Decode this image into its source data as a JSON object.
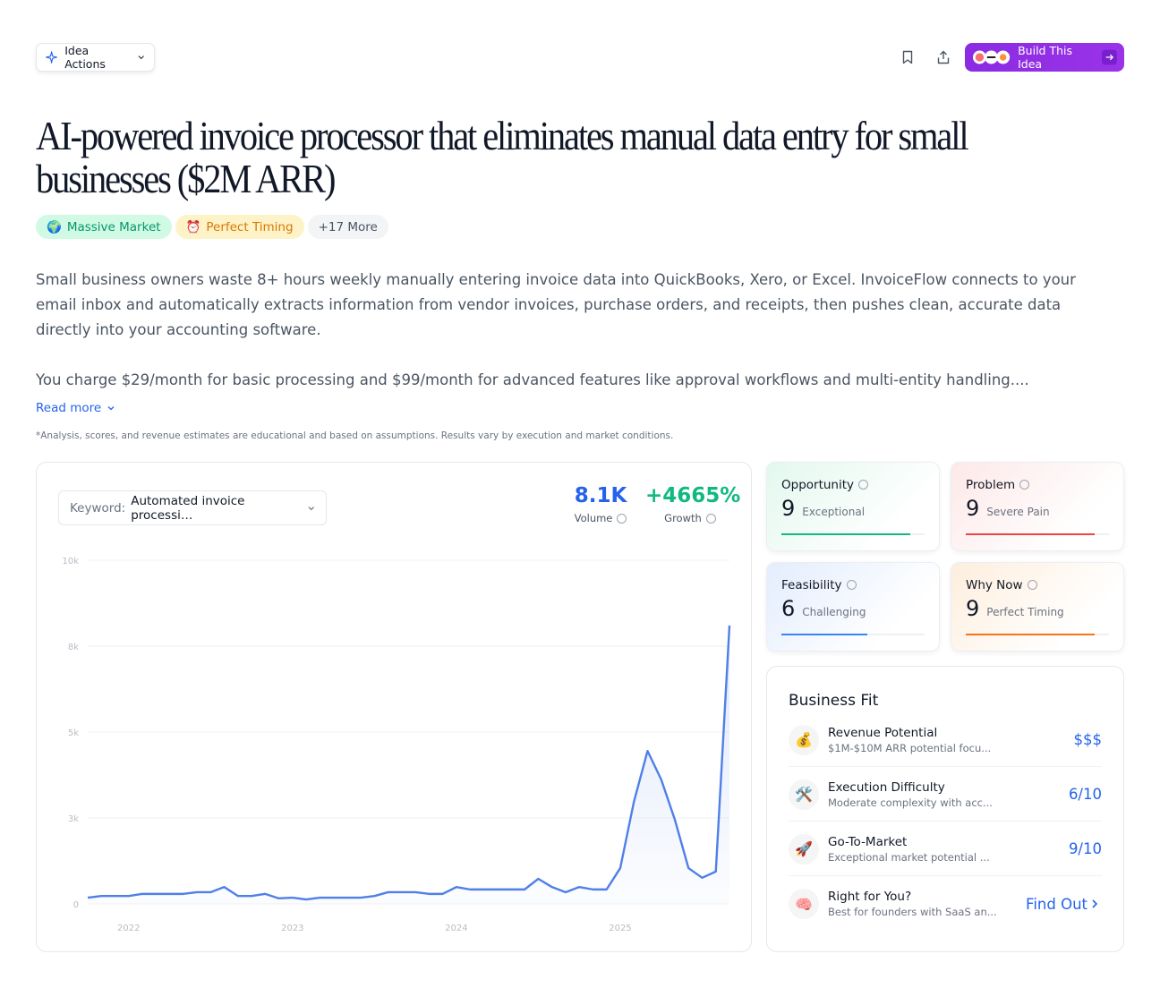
{
  "header": {
    "actions_menu": "Idea Actions",
    "build_button": "Build This Idea"
  },
  "title": "AI-powered invoice processor that eliminates manual data entry for small businesses ($2M ARR)",
  "tags": [
    {
      "icon": "🌍",
      "label": "Massive Market"
    },
    {
      "icon": "⏰",
      "label": "Perfect Timing"
    },
    {
      "label": "+17 More"
    }
  ],
  "description": [
    "Small business owners waste 8+ hours weekly manually entering invoice data into QuickBooks, Xero, or Excel. InvoiceFlow connects to your email inbox and automatically extracts information from vendor invoices, purchase orders, and receipts, then pushes clean, accurate data directly into your accounting software.",
    "You charge $29/month for basic processing and $99/month for advanced features like approval workflows and multi-entity handling...."
  ],
  "read_more": "Read more",
  "disclaimer": "*Analysis, scores, and revenue estimates are educational and based on assumptions. Results vary by execution and market conditions.",
  "trend": {
    "keyword_label": "Keyword:",
    "keyword": "Automated invoice processi…",
    "volume": "8.1K",
    "volume_label": "Volume",
    "growth": "+4665%",
    "growth_label": "Growth"
  },
  "chart_data": {
    "type": "line",
    "categories": [
      null,
      null,
      null,
      "2022",
      null,
      null,
      null,
      null,
      null,
      null,
      null,
      null,
      null,
      null,
      null,
      "2023",
      null,
      null,
      null,
      null,
      null,
      null,
      null,
      null,
      null,
      null,
      null,
      "2024",
      null,
      null,
      null,
      null,
      null,
      null,
      null,
      null,
      null,
      null,
      null,
      "2025",
      null,
      null,
      null,
      null,
      null,
      null,
      null,
      null
    ],
    "series": [
      {
        "color": "#4f7fe8",
        "values": [
          180,
          230,
          230,
          230,
          290,
          290,
          290,
          290,
          340,
          340,
          490,
          230,
          230,
          290,
          160,
          180,
          130,
          180,
          180,
          180,
          180,
          230,
          340,
          340,
          340,
          290,
          290,
          490,
          420,
          420,
          420,
          420,
          420,
          730,
          490,
          340,
          490,
          420,
          420,
          1040,
          2970,
          4450,
          3620,
          2450,
          1040,
          760,
          940,
          8100
        ]
      }
    ],
    "ylim": [
      0,
      10000
    ],
    "yticks": [
      0,
      {
        "value": 2500,
        "label": "3k"
      },
      {
        "value": 5000,
        "label": "5k"
      },
      {
        "value": 7500,
        "label": "8k"
      },
      {
        "value": 10000,
        "label": "10k"
      }
    ],
    "grid": true
  },
  "scores": {
    "xlim": [
      0,
      10
    ],
    "cards": [
      {
        "label": "Opportunity",
        "score": 9,
        "rating": "Exceptional",
        "color": "#10b981",
        "tint": "#e3f8ee"
      },
      {
        "label": "Problem",
        "score": 9,
        "rating": "Severe Pain",
        "color": "#ef4444",
        "tint": "#fde8e8"
      },
      {
        "label": "Feasibility",
        "score": 6,
        "rating": "Challenging",
        "color": "#3b82f6",
        "tint": "#e3edfd"
      },
      {
        "label": "Why Now",
        "score": 9,
        "rating": "Perfect Timing",
        "color": "#f97316",
        "tint": "#fdeedd"
      }
    ]
  },
  "business_fit": {
    "title": "Business Fit",
    "rows": [
      {
        "icon": "💰",
        "label": "Revenue Potential",
        "detail": "$1M-$10M ARR potential focu...",
        "value": "$$$"
      },
      {
        "icon": "🛠️",
        "label": "Execution Difficulty",
        "detail": "Moderate complexity with acc...",
        "value": "6/10"
      },
      {
        "icon": "🚀",
        "label": "Go-To-Market",
        "detail": "Exceptional market potential ...",
        "value": "9/10"
      },
      {
        "icon": "🧠",
        "label": "Right for You?",
        "detail": "Best for founders with SaaS an...",
        "value": "Find Out"
      }
    ]
  }
}
